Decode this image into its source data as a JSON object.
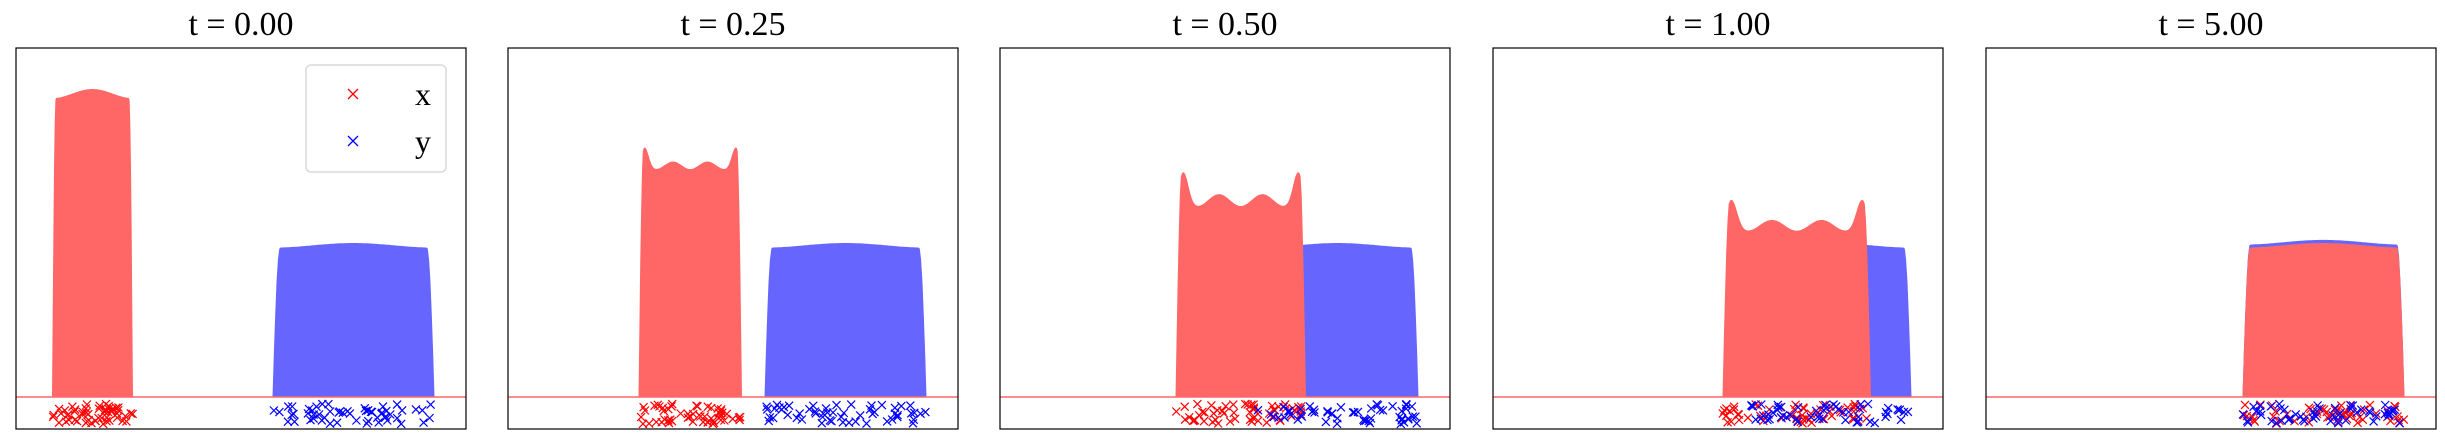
{
  "figure": {
    "legend": {
      "x_label": "x",
      "y_label": "y"
    },
    "colors": {
      "x": "#ff6666",
      "y": "#6666ff",
      "x_marker": "#ff0000",
      "y_marker": "#0000ff",
      "axis": "#000000",
      "baseline": "#ff6666"
    }
  },
  "chart_data": [
    {
      "type": "area",
      "title": "t = 0.00",
      "legend": {
        "entries": [
          "x",
          "y"
        ],
        "placement": "top-right",
        "markers": "x"
      },
      "series": [
        {
          "name": "x",
          "color": "#ff6666",
          "support": [
            0.08,
            0.26
          ],
          "height": 1.0,
          "shape": "plateau"
        },
        {
          "name": "y",
          "color": "#6666ff",
          "support": [
            0.57,
            0.93
          ],
          "height": 0.5,
          "shape": "plateau"
        }
      ],
      "samples": [
        {
          "name": "x",
          "color": "#ff0000",
          "range": [
            0.08,
            0.26
          ]
        },
        {
          "name": "y",
          "color": "#0000ff",
          "range": [
            0.57,
            0.93
          ]
        }
      ]
    },
    {
      "type": "area",
      "title": "t = 0.25",
      "series": [
        {
          "name": "x",
          "color": "#ff6666",
          "support": [
            0.29,
            0.52
          ],
          "height": 0.81,
          "shape": "ripple",
          "dip": 0.74
        },
        {
          "name": "y",
          "color": "#6666ff",
          "support": [
            0.57,
            0.93
          ],
          "height": 0.5,
          "shape": "plateau"
        }
      ],
      "samples": [
        {
          "name": "x",
          "color": "#ff0000",
          "range": [
            0.29,
            0.52
          ]
        },
        {
          "name": "y",
          "color": "#0000ff",
          "range": [
            0.57,
            0.93
          ]
        }
      ]
    },
    {
      "type": "area",
      "title": "t = 0.50",
      "series": [
        {
          "name": "y",
          "color": "#6666ff",
          "support": [
            0.57,
            0.93
          ],
          "height": 0.5,
          "shape": "plateau"
        },
        {
          "name": "x",
          "color": "#ff6666",
          "support": [
            0.39,
            0.68
          ],
          "height": 0.73,
          "shape": "ripple",
          "dip": 0.62
        }
      ],
      "samples": [
        {
          "name": "x",
          "color": "#ff0000",
          "range": [
            0.39,
            0.68
          ]
        },
        {
          "name": "y",
          "color": "#0000ff",
          "range": [
            0.57,
            0.93
          ]
        }
      ]
    },
    {
      "type": "area",
      "title": "t = 1.00",
      "series": [
        {
          "name": "y",
          "color": "#6666ff",
          "support": [
            0.57,
            0.93
          ],
          "height": 0.5,
          "shape": "plateau"
        },
        {
          "name": "x",
          "color": "#ff6666",
          "support": [
            0.51,
            0.84
          ],
          "height": 0.64,
          "shape": "ripple",
          "dip": 0.54
        }
      ],
      "samples": [
        {
          "name": "x",
          "color": "#ff0000",
          "range": [
            0.51,
            0.84
          ]
        },
        {
          "name": "y",
          "color": "#0000ff",
          "range": [
            0.57,
            0.93
          ]
        }
      ]
    },
    {
      "type": "area",
      "title": "t = 5.00",
      "series": [
        {
          "name": "y",
          "color": "#6666ff",
          "support": [
            0.57,
            0.93
          ],
          "height": 0.51,
          "shape": "plateau"
        },
        {
          "name": "x",
          "color": "#ff6666",
          "support": [
            0.57,
            0.93
          ],
          "height": 0.5,
          "shape": "plateau"
        }
      ],
      "samples": [
        {
          "name": "x",
          "color": "#ff0000",
          "range": [
            0.57,
            0.93
          ]
        },
        {
          "name": "y",
          "color": "#0000ff",
          "range": [
            0.57,
            0.93
          ]
        }
      ]
    }
  ]
}
